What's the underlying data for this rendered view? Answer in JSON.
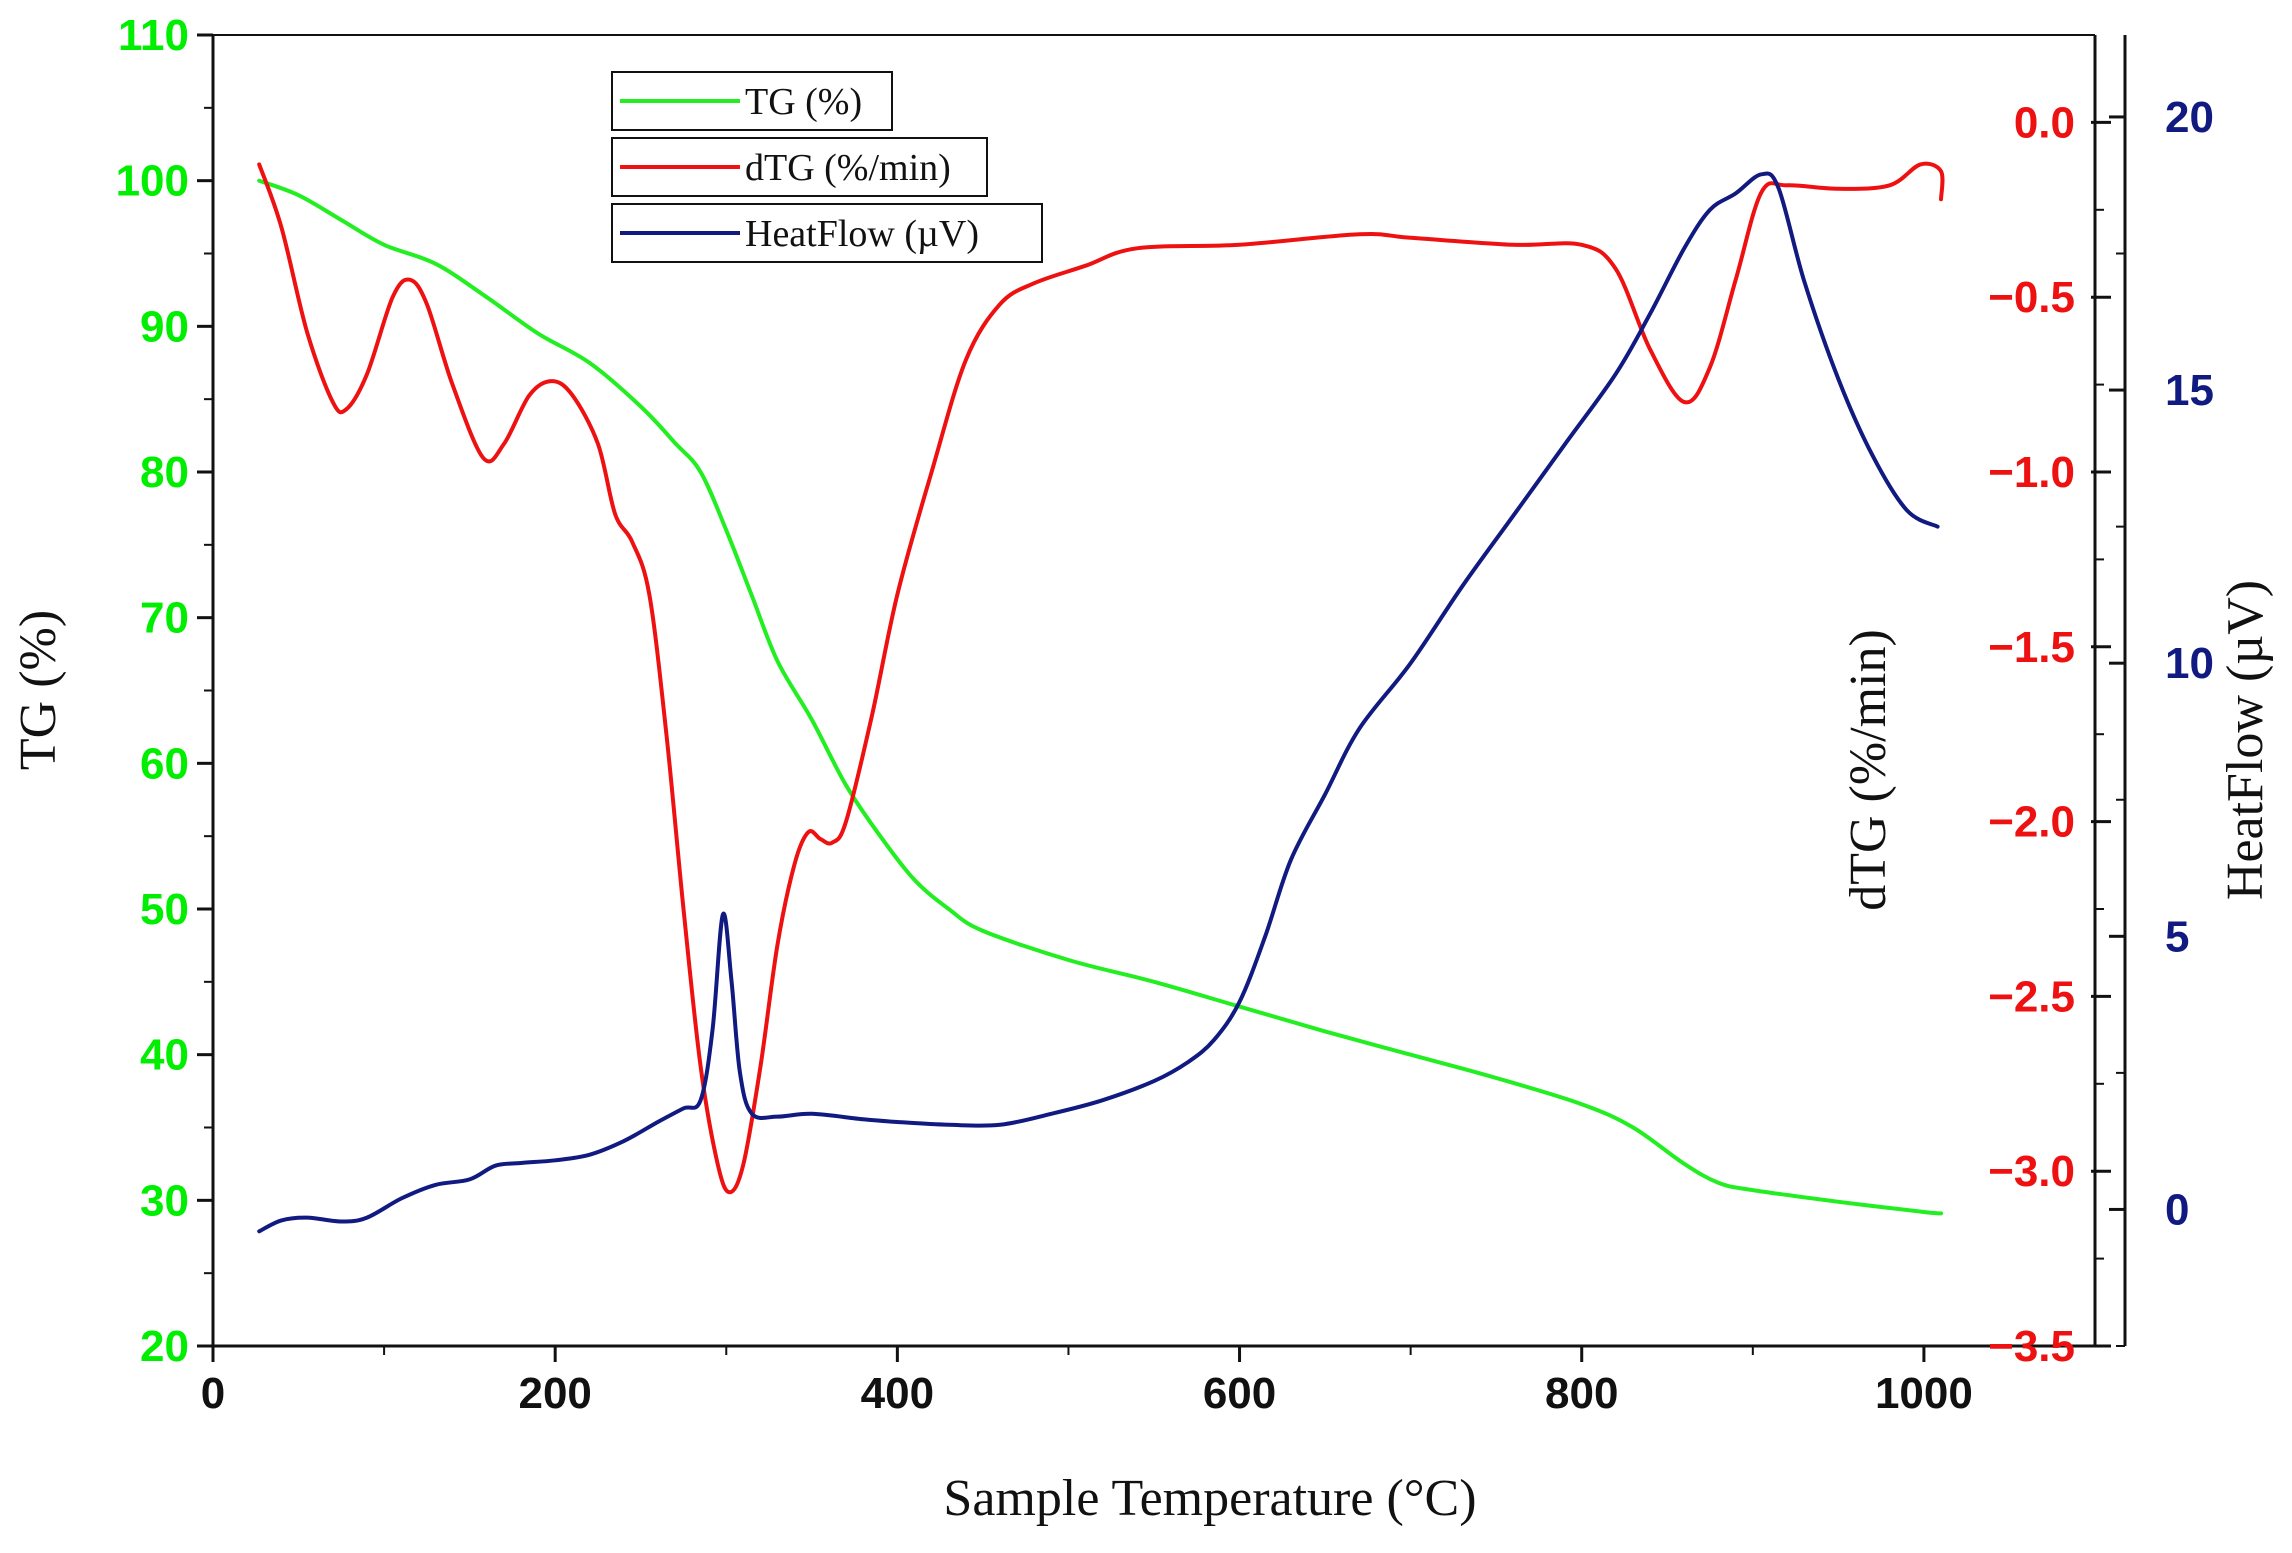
{
  "chart_data": {
    "type": "line",
    "xlabel": "Sample Temperature (°C)",
    "x_axis": {
      "range": [
        0,
        1100
      ],
      "ticks": [
        0,
        200,
        400,
        600,
        800,
        1000
      ],
      "tick_labels": [
        "0",
        "200",
        "400",
        "600",
        "800",
        "1000"
      ]
    },
    "y_axes": [
      {
        "id": "tg",
        "label": "TG  (%)",
        "color": "#00ee00",
        "position": "left",
        "range": [
          20,
          110
        ],
        "ticks": [
          20,
          30,
          40,
          50,
          60,
          70,
          80,
          90,
          100,
          110
        ],
        "tick_labels": [
          "20",
          "30",
          "40",
          "50",
          "60",
          "70",
          "80",
          "90",
          "100",
          "110"
        ]
      },
      {
        "id": "dtg",
        "label": "dTG (%/min)",
        "color": "#ee1111",
        "position": "right-inner",
        "range": [
          -3.5,
          0.25
        ],
        "ticks": [
          0.0,
          -0.5,
          -1.0,
          -1.5,
          -2.0,
          -2.5,
          -3.0,
          -3.5
        ],
        "tick_labels": [
          "0.0",
          "−0.5",
          "−1.0",
          "−1.5",
          "−2.0",
          "−2.5",
          "−3.0",
          "−3.5"
        ]
      },
      {
        "id": "hf",
        "label": "HeatFlow  (µV)",
        "color": "#111a80",
        "position": "right-outer",
        "range": [
          -2.5,
          21.5
        ],
        "ticks": [
          0,
          5,
          10,
          15,
          20
        ],
        "tick_labels": [
          "0",
          "5",
          "10",
          "15",
          "20"
        ]
      }
    ],
    "series": [
      {
        "name": "TG  (%)",
        "axis": "tg",
        "color": "#22ee22",
        "points": [
          [
            27,
            100
          ],
          [
            50,
            99
          ],
          [
            75,
            97.3
          ],
          [
            100,
            95.6
          ],
          [
            130,
            94.3
          ],
          [
            160,
            92
          ],
          [
            190,
            89.5
          ],
          [
            220,
            87.5
          ],
          [
            250,
            84.5
          ],
          [
            270,
            82
          ],
          [
            285,
            80
          ],
          [
            300,
            76
          ],
          [
            315,
            71.5
          ],
          [
            330,
            67
          ],
          [
            350,
            63
          ],
          [
            370,
            58.5
          ],
          [
            390,
            55
          ],
          [
            410,
            52
          ],
          [
            430,
            50
          ],
          [
            450,
            48.5
          ],
          [
            500,
            46.5
          ],
          [
            550,
            45
          ],
          [
            600,
            43.3
          ],
          [
            650,
            41.6
          ],
          [
            700,
            40
          ],
          [
            750,
            38.4
          ],
          [
            800,
            36.6
          ],
          [
            830,
            35
          ],
          [
            860,
            32.5
          ],
          [
            880,
            31.2
          ],
          [
            900,
            30.7
          ],
          [
            950,
            29.9
          ],
          [
            1000,
            29.2
          ],
          [
            1010,
            29.1
          ]
        ]
      },
      {
        "name": "dTG (%/min)",
        "axis": "dtg",
        "color": "#ee1111",
        "points": [
          [
            27,
            -0.12
          ],
          [
            40,
            -0.3
          ],
          [
            55,
            -0.6
          ],
          [
            70,
            -0.8
          ],
          [
            78,
            -0.82
          ],
          [
            90,
            -0.72
          ],
          [
            105,
            -0.5
          ],
          [
            115,
            -0.45
          ],
          [
            125,
            -0.52
          ],
          [
            140,
            -0.75
          ],
          [
            158,
            -0.96
          ],
          [
            170,
            -0.92
          ],
          [
            185,
            -0.78
          ],
          [
            198,
            -0.74
          ],
          [
            210,
            -0.78
          ],
          [
            225,
            -0.92
          ],
          [
            235,
            -1.12
          ],
          [
            245,
            -1.2
          ],
          [
            255,
            -1.35
          ],
          [
            265,
            -1.75
          ],
          [
            275,
            -2.25
          ],
          [
            285,
            -2.7
          ],
          [
            295,
            -2.98
          ],
          [
            302,
            -3.06
          ],
          [
            310,
            -2.98
          ],
          [
            320,
            -2.7
          ],
          [
            330,
            -2.35
          ],
          [
            340,
            -2.12
          ],
          [
            348,
            -2.03
          ],
          [
            355,
            -2.05
          ],
          [
            362,
            -2.06
          ],
          [
            370,
            -2.0
          ],
          [
            385,
            -1.7
          ],
          [
            400,
            -1.35
          ],
          [
            420,
            -1.0
          ],
          [
            440,
            -0.68
          ],
          [
            460,
            -0.52
          ],
          [
            480,
            -0.46
          ],
          [
            510,
            -0.41
          ],
          [
            540,
            -0.36
          ],
          [
            600,
            -0.35
          ],
          [
            670,
            -0.32
          ],
          [
            700,
            -0.33
          ],
          [
            760,
            -0.35
          ],
          [
            800,
            -0.35
          ],
          [
            820,
            -0.42
          ],
          [
            840,
            -0.65
          ],
          [
            860,
            -0.8
          ],
          [
            875,
            -0.7
          ],
          [
            890,
            -0.45
          ],
          [
            905,
            -0.2
          ],
          [
            920,
            -0.18
          ],
          [
            950,
            -0.19
          ],
          [
            980,
            -0.18
          ],
          [
            998,
            -0.12
          ],
          [
            1010,
            -0.14
          ],
          [
            1010,
            -0.22
          ]
        ]
      },
      {
        "name": "HeatFlow  (µV)",
        "axis": "hf",
        "color": "#111a80",
        "points": [
          [
            27,
            -0.4
          ],
          [
            40,
            -0.2
          ],
          [
            55,
            -0.15
          ],
          [
            75,
            -0.22
          ],
          [
            90,
            -0.15
          ],
          [
            110,
            0.2
          ],
          [
            130,
            0.45
          ],
          [
            150,
            0.55
          ],
          [
            165,
            0.8
          ],
          [
            180,
            0.85
          ],
          [
            200,
            0.9
          ],
          [
            220,
            1.0
          ],
          [
            240,
            1.25
          ],
          [
            260,
            1.6
          ],
          [
            275,
            1.85
          ],
          [
            285,
            2.0
          ],
          [
            292,
            3.3
          ],
          [
            298,
            5.4
          ],
          [
            303,
            4.2
          ],
          [
            308,
            2.5
          ],
          [
            315,
            1.75
          ],
          [
            330,
            1.7
          ],
          [
            350,
            1.75
          ],
          [
            380,
            1.65
          ],
          [
            400,
            1.6
          ],
          [
            430,
            1.55
          ],
          [
            460,
            1.55
          ],
          [
            490,
            1.75
          ],
          [
            520,
            2.0
          ],
          [
            550,
            2.35
          ],
          [
            570,
            2.7
          ],
          [
            585,
            3.1
          ],
          [
            600,
            3.8
          ],
          [
            615,
            5.0
          ],
          [
            630,
            6.4
          ],
          [
            650,
            7.6
          ],
          [
            670,
            8.8
          ],
          [
            700,
            10.0
          ],
          [
            730,
            11.4
          ],
          [
            760,
            12.7
          ],
          [
            790,
            14.0
          ],
          [
            820,
            15.3
          ],
          [
            840,
            16.4
          ],
          [
            860,
            17.6
          ],
          [
            875,
            18.3
          ],
          [
            890,
            18.6
          ],
          [
            905,
            18.95
          ],
          [
            915,
            18.7
          ],
          [
            930,
            17.0
          ],
          [
            950,
            15.2
          ],
          [
            970,
            13.8
          ],
          [
            990,
            12.8
          ],
          [
            1008,
            12.5
          ]
        ]
      }
    ],
    "legend": {
      "placement": "top-center",
      "entries": [
        {
          "label": "TG  (%)",
          "color": "#22ee22"
        },
        {
          "label": "dTG (%/min)",
          "color": "#ee1111"
        },
        {
          "label": "HeatFlow  (µV)",
          "color": "#111a80"
        }
      ]
    }
  }
}
